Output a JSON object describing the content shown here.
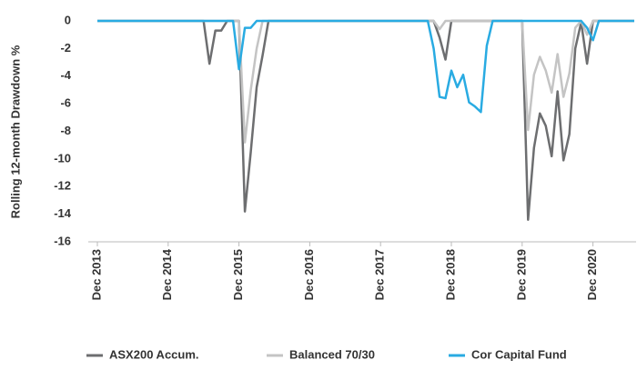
{
  "chart_data": {
    "type": "line",
    "y_label": "Rolling 12-month Drawdown %",
    "categories": [
      "Dec 2013",
      null,
      null,
      null,
      null,
      null,
      null,
      null,
      null,
      null,
      null,
      null,
      "Dec 2014",
      null,
      null,
      null,
      null,
      null,
      null,
      null,
      null,
      null,
      null,
      null,
      "Dec 2015",
      null,
      null,
      null,
      null,
      null,
      null,
      null,
      null,
      null,
      null,
      null,
      "Dec 2016",
      null,
      null,
      null,
      null,
      null,
      null,
      null,
      null,
      null,
      null,
      null,
      "Dec 2017",
      null,
      null,
      null,
      null,
      null,
      null,
      null,
      null,
      null,
      null,
      null,
      "Dec 2018",
      null,
      null,
      null,
      null,
      null,
      null,
      null,
      null,
      null,
      null,
      null,
      "Dec 2019",
      null,
      null,
      null,
      null,
      null,
      null,
      null,
      null,
      null,
      null,
      null,
      "Dec 2020",
      null,
      null,
      null,
      null,
      null,
      null,
      null
    ],
    "series": [
      {
        "name": "ASX200 Accum.",
        "color": "#6d6e70",
        "values": [
          0,
          0,
          0,
          0,
          0,
          0,
          0,
          0,
          0,
          0,
          0,
          0,
          0,
          0,
          0,
          0,
          0,
          0,
          0,
          -3.1,
          -0.7,
          -0.7,
          0,
          0,
          0,
          -13.8,
          -9.5,
          -4.8,
          -2.5,
          0,
          0,
          0,
          0,
          0,
          0,
          0,
          0,
          0,
          0,
          0,
          0,
          0,
          0,
          0,
          0,
          0,
          0,
          0,
          0,
          0,
          0,
          0,
          0,
          0,
          0,
          0,
          0,
          0,
          -1.2,
          -2.8,
          0,
          0,
          0,
          0,
          0,
          0,
          0,
          0,
          0,
          0,
          0,
          0,
          0,
          -14.4,
          -9.2,
          -6.7,
          -7.6,
          -9.8,
          -5.1,
          -10.1,
          -8.2,
          -2.0,
          -0.1,
          -3.1,
          0,
          0,
          0,
          0,
          0,
          0,
          0,
          0
        ]
      },
      {
        "name": "Balanced 70/30",
        "color": "#c4c4c4",
        "values": [
          0,
          0,
          0,
          0,
          0,
          0,
          0,
          0,
          0,
          0,
          0,
          0,
          0,
          0,
          0,
          0,
          0,
          0,
          0,
          0,
          0,
          0,
          0,
          0,
          0,
          -8.8,
          -5.0,
          -2.0,
          0,
          0,
          0,
          0,
          0,
          0,
          0,
          0,
          0,
          0,
          0,
          0,
          0,
          0,
          0,
          0,
          0,
          0,
          0,
          0,
          0,
          0,
          0,
          0,
          0,
          0,
          0,
          0,
          0,
          0,
          -0.6,
          0,
          0,
          0,
          0,
          0,
          0,
          0,
          0,
          0,
          0,
          0,
          0,
          0,
          0,
          -7.9,
          -3.9,
          -2.6,
          -3.6,
          -5.2,
          -2.4,
          -5.5,
          -3.8,
          -0.5,
          0,
          -1.0,
          0,
          0,
          0,
          0,
          0,
          0,
          0,
          0
        ]
      },
      {
        "name": "Cor Capital Fund",
        "color": "#29abe2",
        "values": [
          0,
          0,
          0,
          0,
          0,
          0,
          0,
          0,
          0,
          0,
          0,
          0,
          0,
          0,
          0,
          0,
          0,
          0,
          0,
          0,
          0,
          0,
          0,
          0,
          -3.5,
          -0.5,
          -0.5,
          0,
          0,
          0,
          0,
          0,
          0,
          0,
          0,
          0,
          0,
          0,
          0,
          0,
          0,
          0,
          0,
          0,
          0,
          0,
          0,
          0,
          0,
          0,
          0,
          0,
          0,
          0,
          0,
          0,
          0,
          -2.0,
          -5.5,
          -5.6,
          -3.6,
          -4.8,
          -3.9,
          -5.9,
          -6.2,
          -6.6,
          -1.8,
          0,
          0,
          0,
          0,
          0,
          0,
          0,
          0,
          0,
          0,
          0,
          0,
          0,
          0,
          0,
          0,
          -0.5,
          -1.4,
          0,
          0,
          0,
          0,
          0,
          0,
          0
        ]
      }
    ],
    "ylim": [
      -16,
      0
    ],
    "yticks": [
      0,
      -2,
      -4,
      -6,
      -8,
      -10,
      -12,
      -14,
      -16
    ],
    "grid": false,
    "legend": "bottom"
  }
}
